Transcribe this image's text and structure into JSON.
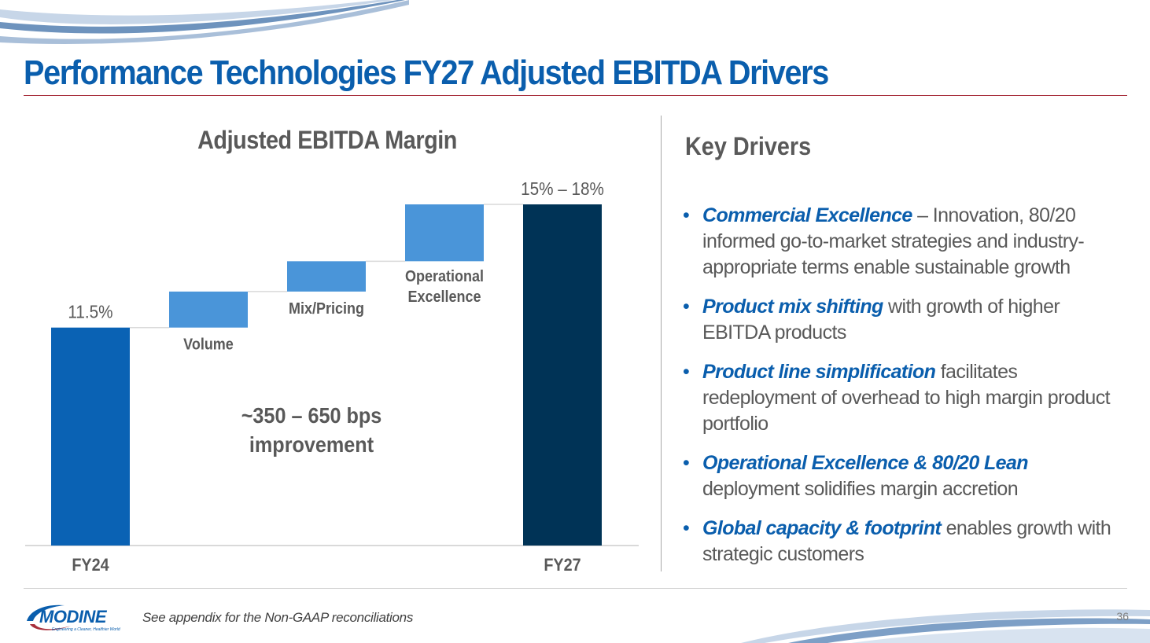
{
  "title": "Performance Technologies FY27 Adjusted EBITDA Drivers",
  "chart_data": {
    "type": "bar",
    "subtype": "waterfall",
    "title": "Adjusted EBITDA Margin",
    "ylabel": "",
    "xlabel": "",
    "units": "percent",
    "ylim": [
      0,
      18
    ],
    "grid": false,
    "bars": [
      {
        "id": "fy24",
        "kind": "total",
        "category": "FY24",
        "value": 11.5,
        "label": "11.5%",
        "color": "#0a62b4"
      },
      {
        "id": "volume",
        "kind": "step",
        "category": "Volume",
        "start": 11.5,
        "end": 13.4,
        "color": "#4a95d9"
      },
      {
        "id": "mixpricing",
        "kind": "step",
        "category": "Mix/Pricing",
        "start": 13.4,
        "end": 15.0,
        "color": "#4a95d9"
      },
      {
        "id": "opex",
        "kind": "step",
        "category": "Operational Excellence",
        "category_lines": [
          "Operational",
          "Excellence"
        ],
        "start": 15.0,
        "end": 18.0,
        "color": "#4a95d9"
      },
      {
        "id": "fy27",
        "kind": "total",
        "category": "FY27",
        "value_range": [
          15,
          18
        ],
        "value": 18.0,
        "label": "15% – 18%",
        "color": "#003356"
      }
    ],
    "annotation": {
      "line1": "~350 – 650 bps",
      "line2": "improvement"
    }
  },
  "drivers": {
    "title": "Key Drivers",
    "items": [
      {
        "emphasis": "Commercial Excellence",
        "text": " – Innovation, 80/20 informed go-to-market strategies and industry-appropriate terms enable sustainable growth"
      },
      {
        "emphasis": "Product mix shifting",
        "text": " with growth of higher EBITDA products"
      },
      {
        "emphasis": "Product line simplification",
        "text": " facilitates redeployment of overhead to high margin product portfolio"
      },
      {
        "emphasis": "Operational Excellence & 80/20 Lean",
        "text": " deployment solidifies margin accretion"
      },
      {
        "emphasis": "Global capacity & footprint",
        "text": " enables growth with strategic customers"
      }
    ],
    "bullet": "•"
  },
  "footer": {
    "logo_text": "MODINE",
    "logo_tagline": "Engineering a Cleaner, Healthier World",
    "note": "See appendix for the Non-GAAP reconciliations",
    "page": "36"
  },
  "colors": {
    "accent": "#0a5ead",
    "rule": "#a8303d",
    "text": "#595959"
  }
}
